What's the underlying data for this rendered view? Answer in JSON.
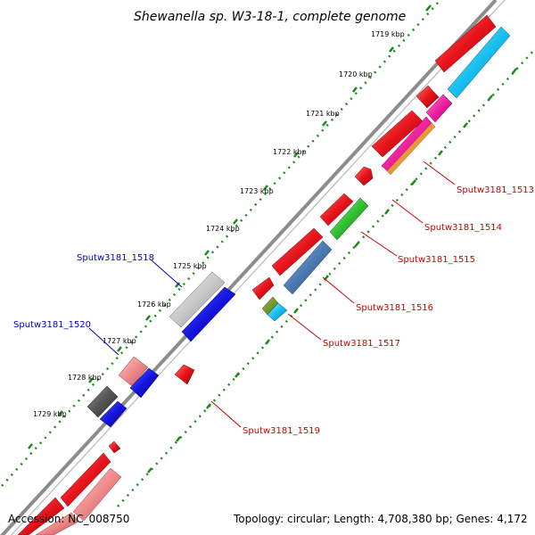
{
  "title": "Shewanella sp. W3-18-1, complete genome",
  "accession": "Accession: NC_008750",
  "summary": "Topology: circular; Length: 4,708,380 bp; Genes: 4,172",
  "kbp_ticks": [
    "1719 kbp",
    "1720 kbp",
    "1721 kbp",
    "1722 kbp",
    "1723 kbp",
    "1724 kbp",
    "1725 kbp",
    "1726 kbp",
    "1727 kbp",
    "1728 kbp",
    "1729 kbp"
  ],
  "gene_labels": {
    "g1513": "Sputw3181_1513",
    "g1514": "Sputw3181_1514",
    "g1515": "Sputw3181_1515",
    "g1516": "Sputw3181_1516",
    "g1517": "Sputw3181_1517",
    "g1518": "Sputw3181_1518",
    "g1519": "Sputw3181_1519",
    "g1520": "Sputw3181_1520"
  },
  "colors": {
    "backbone": "#8c8c8c",
    "gc_skew_dots": "#1a8a1a",
    "cds_red": "#e8141c",
    "cds_blue": "#1414e0",
    "cds_gray": "#c8c8c8",
    "cds_darkgray": "#555555",
    "cds_pink": "#f08c8c",
    "cds_cyan": "#18c0f0",
    "cds_magenta": "#f020a0",
    "cds_green": "#30c030",
    "cds_steel": "#4a7ab0",
    "label_red": "#cc0000",
    "label_blue": "#0000cc"
  }
}
